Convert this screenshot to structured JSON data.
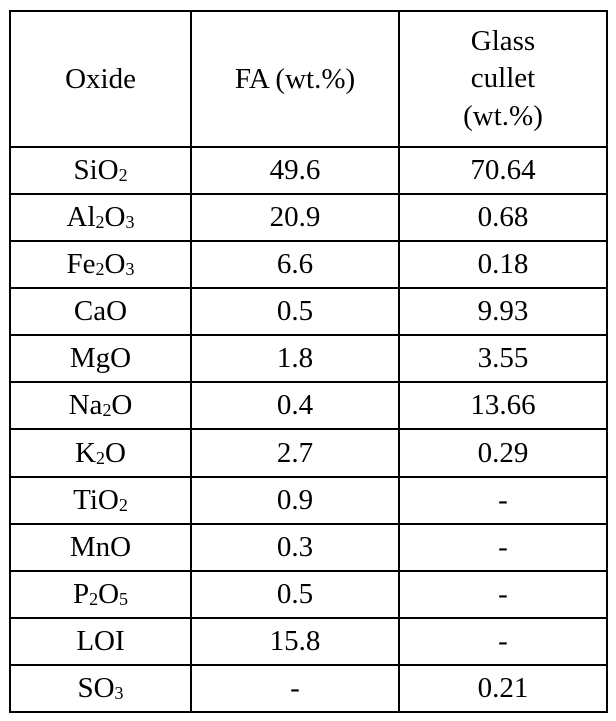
{
  "headers": {
    "oxide": "Oxide",
    "fa": "FA (wt.%)",
    "glass_line1": "Glass",
    "glass_line2": "cullet",
    "glass_line3": "(wt.%)"
  },
  "rows": [
    {
      "oxide": "SiO2",
      "fa": "49.6",
      "glass": "70.64"
    },
    {
      "oxide": "Al2O3",
      "fa": "20.9",
      "glass": "0.68"
    },
    {
      "oxide": "Fe2O3",
      "fa": "6.6",
      "glass": "0.18"
    },
    {
      "oxide": "CaO",
      "fa": "0.5",
      "glass": "9.93"
    },
    {
      "oxide": "MgO",
      "fa": "1.8",
      "glass": "3.55"
    },
    {
      "oxide": "Na2O",
      "fa": "0.4",
      "glass": "13.66"
    },
    {
      "oxide": "K2O",
      "fa": "2.7",
      "glass": "0.29"
    },
    {
      "oxide": "TiO2",
      "fa": "0.9",
      "glass": "-"
    },
    {
      "oxide": "MnO",
      "fa": "0.3",
      "glass": "-"
    },
    {
      "oxide": "P2O5",
      "fa": "0.5",
      "glass": "-"
    },
    {
      "oxide": "LOI",
      "fa": "15.8",
      "glass": "-"
    },
    {
      "oxide": "SO3",
      "fa": "-",
      "glass": "0.21"
    }
  ]
}
